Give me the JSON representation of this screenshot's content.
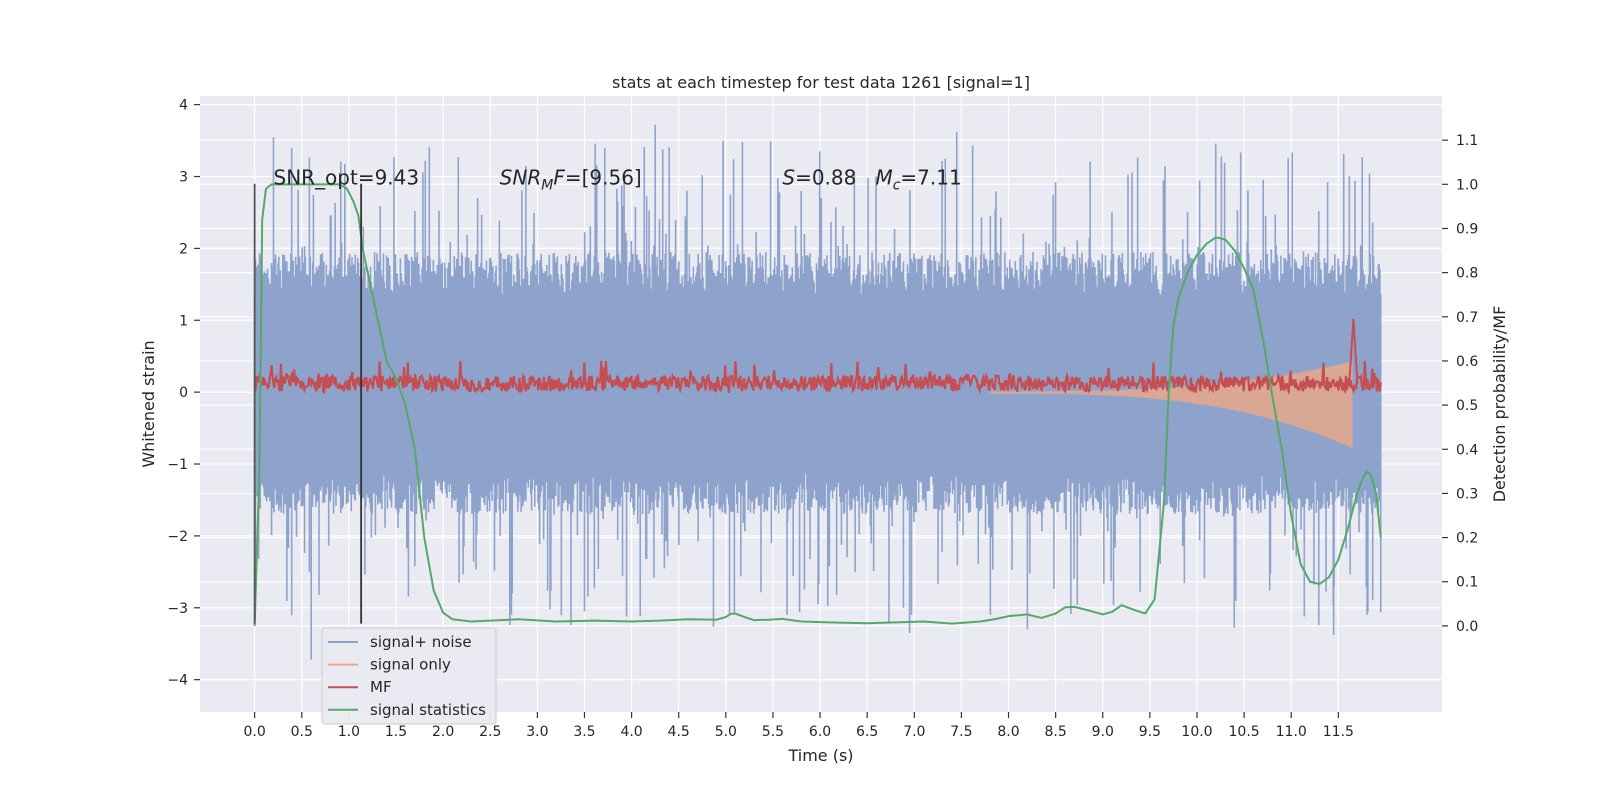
{
  "chart_data": {
    "type": "line",
    "title": "stats at each timestep for test data 1261 [signal=1]",
    "xlabel": "Time (s)",
    "ylabel": "Whitened strain",
    "y2label": "Detection probability/MF",
    "xlim": [
      -0.58,
      12.6
    ],
    "ylim": [
      -4.45,
      4.12
    ],
    "y2lim": [
      -0.195,
      1.2
    ],
    "x_ticks": [
      0.0,
      0.5,
      1.0,
      1.5,
      2.0,
      2.5,
      3.0,
      3.5,
      4.0,
      4.5,
      5.0,
      5.5,
      6.0,
      6.5,
      7.0,
      7.5,
      8.0,
      8.5,
      9.0,
      9.5,
      10.0,
      10.5,
      11.0,
      11.5
    ],
    "x_tick_labels": [
      "0.0",
      "0.5",
      "1.0",
      "1.5",
      "2.0",
      "2.5",
      "3.0",
      "3.5",
      "4.0",
      "4.5",
      "5.0",
      "5.5",
      "6.0",
      "6.5",
      "7.0",
      "7.5",
      "8.0",
      "8.5",
      "9.0",
      "9.5",
      "10.0",
      "10.5",
      "11.0",
      "11.5"
    ],
    "y_ticks": [
      -4,
      -3,
      -2,
      -1,
      0,
      1,
      2,
      3,
      4
    ],
    "y_tick_labels": [
      "−4",
      "−3",
      "−2",
      "−1",
      "0",
      "1",
      "2",
      "3",
      "4"
    ],
    "y2_ticks": [
      0.0,
      0.1,
      0.2,
      0.3,
      0.4,
      0.5,
      0.6,
      0.7,
      0.8,
      0.9,
      1.0,
      1.1
    ],
    "y2_tick_labels": [
      "0.0",
      "0.1",
      "0.2",
      "0.3",
      "0.4",
      "0.5",
      "0.6",
      "0.7",
      "0.8",
      "0.9",
      "1.0",
      "1.1"
    ],
    "grid": true,
    "legend_placement": "lower-left",
    "annotations": [
      {
        "x": 0.2,
        "y": 3.0,
        "parts": [
          {
            "t": "SNR_opt=9.43",
            "s": "n"
          }
        ]
      },
      {
        "x": 2.6,
        "y": 3.0,
        "parts": [
          {
            "t": "SNR",
            "s": "i"
          },
          {
            "t": "M",
            "s": "isub"
          },
          {
            "t": "F",
            "s": "i"
          },
          {
            "t": "=[9.56]",
            "s": "n"
          }
        ]
      },
      {
        "x": 5.6,
        "y": 3.0,
        "parts": [
          {
            "t": "S",
            "s": "i"
          },
          {
            "t": "=0.88   ",
            "s": "n"
          },
          {
            "t": "M",
            "s": "i"
          },
          {
            "t": "c",
            "s": "isub"
          },
          {
            "t": "=7.11",
            "s": "n"
          }
        ]
      }
    ],
    "vlines": [
      {
        "x": 0.0,
        "y0": -3.22,
        "y1": 2.9,
        "color": "#555555"
      },
      {
        "x": 1.13,
        "y0": -3.22,
        "y1": 2.9,
        "color": "#333333"
      }
    ],
    "colors": {
      "background": "#eaeaf2",
      "grid": "#ffffff",
      "signal_noise": "#8ea3cc",
      "signal_only": "#e8a88a",
      "mf": "#c44e52",
      "stats": "#55a868"
    },
    "series": [
      {
        "name": "signal+ noise",
        "style": "noise",
        "t_range": [
          0.0,
          11.95
        ],
        "samples": 1400,
        "seed": 1261,
        "core_amplitude": 1.2,
        "spike_probability": 0.12,
        "spike_max": 3.7,
        "envelope": {
          "lower": -1.4,
          "upper": 1.65
        },
        "marked_extremes": [
          {
            "x": 0.2,
            "y": 3.55
          },
          {
            "x": 4.25,
            "y": 3.72
          },
          {
            "x": 7.45,
            "y": 3.62
          },
          {
            "x": 0.6,
            "y": -3.72
          },
          {
            "x": 3.5,
            "y": -3.05
          },
          {
            "x": 5.65,
            "y": -3.1
          },
          {
            "x": 6.95,
            "y": -3.35
          },
          {
            "x": 8.2,
            "y": -3.3
          },
          {
            "x": 11.45,
            "y": -3.38
          }
        ]
      },
      {
        "name": "signal only",
        "style": "chirp",
        "t_range": [
          7.8,
          11.65
        ],
        "amplitude_start": 0.02,
        "amplitude_end": 0.78,
        "offset": 0.0
      },
      {
        "name": "MF",
        "style": "mf",
        "t_range": [
          0.0,
          11.95
        ],
        "samples": 1200,
        "center": 0.12,
        "spread": 0.11,
        "peak": {
          "x": 11.66,
          "y": 1.02
        }
      },
      {
        "name": "signal statistics",
        "style": "line",
        "axis": "y2",
        "x": [
          0.0,
          0.05,
          0.08,
          0.12,
          0.18,
          0.25,
          0.35,
          0.5,
          0.7,
          0.9,
          0.98,
          1.05,
          1.1,
          1.15,
          1.2,
          1.3,
          1.4,
          1.5,
          1.6,
          1.7,
          1.8,
          1.9,
          2.0,
          2.1,
          2.3,
          2.5,
          2.8,
          3.2,
          3.6,
          4.0,
          4.3,
          4.6,
          4.9,
          5.0,
          5.05,
          5.1,
          5.2,
          5.3,
          5.45,
          5.6,
          5.8,
          6.1,
          6.5,
          6.8,
          7.1,
          7.4,
          7.7,
          7.85,
          8.0,
          8.2,
          8.35,
          8.5,
          8.6,
          8.7,
          8.85,
          9.0,
          9.1,
          9.2,
          9.35,
          9.45,
          9.55,
          9.65,
          9.7,
          9.75,
          9.8,
          9.9,
          10.0,
          10.1,
          10.2,
          10.3,
          10.4,
          10.5,
          10.6,
          10.7,
          10.8,
          10.9,
          11.0,
          11.1,
          11.2,
          11.3,
          11.4,
          11.5,
          11.6,
          11.7,
          11.75,
          11.8,
          11.85,
          11.9,
          11.95
        ],
        "y": [
          0.0,
          0.35,
          0.92,
          0.99,
          1.0,
          1.0,
          1.0,
          1.0,
          1.0,
          1.0,
          0.99,
          0.96,
          0.93,
          0.85,
          0.8,
          0.7,
          0.6,
          0.56,
          0.5,
          0.4,
          0.2,
          0.08,
          0.03,
          0.015,
          0.01,
          0.012,
          0.015,
          0.01,
          0.012,
          0.01,
          0.012,
          0.015,
          0.014,
          0.02,
          0.027,
          0.028,
          0.02,
          0.013,
          0.014,
          0.016,
          0.01,
          0.008,
          0.006,
          0.008,
          0.01,
          0.005,
          0.01,
          0.015,
          0.022,
          0.026,
          0.018,
          0.028,
          0.042,
          0.043,
          0.035,
          0.026,
          0.032,
          0.047,
          0.035,
          0.028,
          0.06,
          0.28,
          0.53,
          0.68,
          0.74,
          0.8,
          0.84,
          0.865,
          0.88,
          0.875,
          0.85,
          0.81,
          0.76,
          0.65,
          0.52,
          0.4,
          0.25,
          0.14,
          0.1,
          0.095,
          0.11,
          0.15,
          0.22,
          0.3,
          0.33,
          0.35,
          0.34,
          0.3,
          0.2
        ]
      }
    ]
  }
}
